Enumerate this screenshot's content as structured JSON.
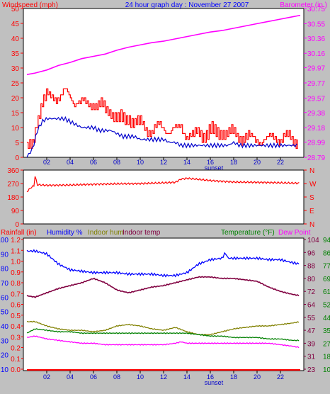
{
  "colors": {
    "red": "#ff0000",
    "magenta": "#ff00ff",
    "blue": "#0000ff",
    "darkblue": "#0000cc",
    "olive": "#808000",
    "green": "#008000",
    "maroon": "#800040",
    "black": "#000000",
    "bg": "#c0c0c0",
    "plot": "#ffffff"
  },
  "header": {
    "left": "Windspeed (mph)",
    "center": "24 hour graph day : November 27 2007",
    "right": "Barometer (in.)"
  },
  "panel3_header": {
    "rainfall": "Rainfall (in)",
    "humidity": "Humidity %",
    "indoor_hum": "Indoor hum",
    "indoor_temp": "Indoor temp",
    "temperature": "Temperature (°F)",
    "dewpoint": "Dew Point"
  },
  "sunset_label": "sunset",
  "chart_data": [
    {
      "type": "line",
      "title": "24 hour graph day : November 27 2007",
      "x_ticks": [
        "02",
        "04",
        "06",
        "08",
        "10",
        "12",
        "14",
        "16",
        "18",
        "20",
        "22"
      ],
      "xlim": [
        0,
        24
      ],
      "left_axis": {
        "label": "Windspeed (mph)",
        "ticks": [
          0,
          5,
          10,
          15,
          20,
          25,
          30,
          35,
          40,
          45,
          50
        ],
        "ylim": [
          0,
          50
        ]
      },
      "right_axis": {
        "label": "Barometer (in.)",
        "ticks": [
          "28.79",
          "28.99",
          "29.18",
          "29.38",
          "29.57",
          "29.77",
          "29.97",
          "30.16",
          "30.36",
          "30.55",
          "30.75"
        ],
        "ylim": [
          28.79,
          30.75
        ]
      },
      "series": [
        {
          "name": "Windspeed (mph)",
          "axis": "left",
          "x": [
            0.3,
            0.8,
            1.2,
            1.6,
            2.0,
            2.5,
            3.0,
            3.5,
            4.0,
            4.5,
            5.0,
            5.5,
            6.0,
            6.5,
            7.0,
            7.5,
            8.0,
            8.5,
            9.0,
            9.5,
            10,
            10.5,
            11,
            11.5,
            12,
            12.5,
            13,
            13.5,
            14,
            14.5,
            15,
            15.5,
            16,
            16.5,
            17,
            17.5,
            18,
            18.5,
            19,
            19.5,
            20,
            20.5,
            21,
            21.5,
            22,
            22.5,
            23,
            23.5
          ],
          "y": [
            2,
            5,
            14,
            18,
            20,
            21,
            20,
            22,
            20,
            19,
            18,
            18,
            19,
            17,
            16,
            16,
            13,
            12,
            14,
            12,
            11,
            10,
            9,
            10,
            10,
            9,
            9,
            10,
            8,
            7,
            8,
            8,
            9,
            8,
            9,
            8,
            8,
            7,
            7,
            6,
            6,
            6,
            6,
            7,
            6,
            7,
            6,
            6
          ]
        },
        {
          "name": "Average windspeed (mph)",
          "axis": "left",
          "x": [
            0.3,
            0.8,
            1.2,
            1.6,
            2.0,
            2.5,
            3.0,
            3.5,
            4.0,
            4.5,
            5.0,
            5.5,
            6.0,
            6.5,
            7.0,
            7.5,
            8.0,
            8.5,
            9.0,
            9.5,
            10,
            10.5,
            11,
            11.5,
            12,
            12.5,
            13,
            13.5,
            14,
            14.5,
            15,
            15.5,
            16,
            16.5,
            17,
            17.5,
            18,
            18.5,
            19,
            19.5,
            20,
            20.5,
            21,
            21.5,
            22,
            22.5,
            23,
            23.5
          ],
          "y": [
            0,
            3,
            9,
            12,
            13,
            13,
            13,
            13,
            12,
            11,
            10,
            10,
            10,
            9,
            9,
            9,
            8,
            7,
            7,
            7,
            6,
            6,
            6,
            6,
            6,
            5,
            5,
            4,
            4,
            4,
            4,
            4,
            4,
            4,
            4,
            4,
            5,
            4,
            4,
            4,
            4,
            4,
            4,
            4,
            4,
            4,
            4,
            4
          ]
        },
        {
          "name": "Barometer (in.)",
          "axis": "right",
          "x": [
            0.3,
            1,
            2,
            3,
            4,
            5,
            6,
            7,
            8,
            9,
            10,
            11,
            12,
            13,
            14,
            15,
            16,
            17,
            18,
            19,
            20,
            21,
            22,
            23,
            23.7
          ],
          "y": [
            29.88,
            29.9,
            29.94,
            30.0,
            30.04,
            30.09,
            30.12,
            30.15,
            30.2,
            30.24,
            30.27,
            30.3,
            30.32,
            30.35,
            30.38,
            30.41,
            30.44,
            30.46,
            30.49,
            30.52,
            30.55,
            30.58,
            30.61,
            30.64,
            30.66
          ]
        }
      ]
    },
    {
      "type": "line",
      "left_axis": {
        "label": "",
        "ticks": [
          0,
          90,
          180,
          270,
          360
        ],
        "ylim": [
          0,
          360
        ]
      },
      "right_axis": {
        "label": "",
        "ticks": [
          "N",
          "W",
          "S",
          "E",
          "N"
        ]
      },
      "series": [
        {
          "name": "Wind direction",
          "axis": "left",
          "x": [
            0.3,
            0.6,
            0.9,
            1.0,
            1.2,
            2,
            4,
            6,
            8,
            10,
            12,
            13,
            13.5,
            14,
            15,
            16,
            17,
            18,
            20,
            22,
            23.7
          ],
          "y": [
            215,
            240,
            255,
            320,
            262,
            258,
            260,
            265,
            268,
            270,
            275,
            278,
            300,
            305,
            298,
            290,
            285,
            280,
            278,
            275,
            272
          ]
        }
      ]
    },
    {
      "type": "line",
      "axes": {
        "rainfall": {
          "label": "Rainfall (in)",
          "ticks": [
            "0.0",
            "0.1",
            "0.2",
            "0.3",
            "0.4",
            "0.5",
            "0.6",
            "0.7",
            "0.8",
            "0.9",
            "1.0",
            "1.1",
            "1.2"
          ],
          "ylim": [
            0,
            1.2
          ]
        },
        "humidity": {
          "label": "Humidity %",
          "ticks": [
            10,
            20,
            30,
            40,
            50,
            60,
            70,
            80,
            90,
            100
          ],
          "ylim": [
            10,
            100
          ]
        },
        "indoor_temp": {
          "label": "Indoor temp",
          "ticks": [
            23,
            31,
            39,
            47,
            55,
            64,
            72,
            80,
            88,
            96,
            104
          ],
          "ylim": [
            23,
            104
          ]
        },
        "temperature": {
          "label": "Temperature (°F)",
          "ticks": [
            10,
            18,
            27,
            35,
            44,
            52,
            61,
            69,
            77,
            86,
            94
          ],
          "ylim": [
            10,
            94
          ]
        }
      },
      "series": [
        {
          "name": "Rainfall (in)",
          "axis": "rainfall",
          "x": [
            0.3,
            23.7
          ],
          "y": [
            0,
            0
          ]
        },
        {
          "name": "Humidity %",
          "axis": "humidity",
          "x": [
            0.3,
            1,
            2,
            3,
            4,
            5,
            6,
            7,
            8,
            9,
            10,
            11,
            12,
            13,
            14,
            15,
            16,
            17,
            17.3,
            17.5,
            18,
            19,
            20,
            21,
            22,
            23,
            23.7
          ],
          "y": [
            92,
            92,
            90,
            83,
            79,
            78,
            77,
            77,
            77,
            76,
            76,
            76,
            75,
            75,
            77,
            83,
            86,
            87,
            91,
            87,
            87,
            87,
            87,
            86,
            86,
            84,
            83
          ]
        },
        {
          "name": "Indoor hum",
          "axis": "humidity",
          "x": [
            0.3,
            1,
            2,
            3,
            4,
            5,
            6,
            7,
            8,
            9,
            10,
            11,
            12,
            13,
            14,
            15,
            16,
            17,
            18,
            19,
            20,
            21,
            22,
            23,
            23.7
          ],
          "y": [
            43,
            43,
            40,
            38,
            37,
            37,
            36,
            37,
            40,
            41,
            40,
            38,
            37,
            39,
            36,
            34,
            34,
            36,
            38,
            39,
            40,
            40,
            41,
            42,
            43
          ]
        },
        {
          "name": "Indoor temp",
          "axis": "humidity",
          "x": [
            0.3,
            1,
            2,
            3,
            4,
            5,
            6,
            7,
            8,
            9,
            10,
            11,
            12,
            13,
            14,
            15,
            16,
            17,
            18,
            19,
            20,
            21,
            22,
            23,
            23.7
          ],
          "y": [
            61,
            60,
            63,
            66,
            68,
            70,
            73,
            70,
            65,
            63,
            65,
            67,
            68,
            70,
            72,
            74,
            74,
            73,
            73,
            72,
            71,
            67,
            64,
            62,
            61
          ]
        },
        {
          "name": "Temperature (°F)",
          "axis": "humidity",
          "x": [
            0.3,
            1,
            2,
            3,
            4,
            5,
            6,
            7,
            8,
            9,
            10,
            11,
            12,
            13,
            14,
            15,
            16,
            17,
            18,
            19,
            20,
            21,
            22,
            23,
            23.7
          ],
          "y": [
            35,
            38,
            37,
            36,
            36,
            35,
            35,
            35,
            35,
            35,
            35,
            35,
            35,
            35,
            35,
            34,
            33,
            33,
            32,
            32,
            32,
            31,
            31,
            30,
            30
          ]
        },
        {
          "name": "Dew Point",
          "axis": "humidity",
          "x": [
            0.3,
            1,
            2,
            3,
            4,
            5,
            6,
            7,
            8,
            9,
            10,
            11,
            12,
            13,
            13.5,
            14,
            15,
            16,
            17,
            18,
            19,
            20,
            21,
            22,
            23,
            23.7
          ],
          "y": [
            32,
            33,
            31,
            30,
            29,
            28,
            28,
            27,
            27,
            27,
            27,
            27,
            27,
            28,
            29,
            28,
            28,
            28,
            28,
            28,
            28,
            28,
            28,
            27,
            26,
            25
          ]
        }
      ]
    }
  ]
}
